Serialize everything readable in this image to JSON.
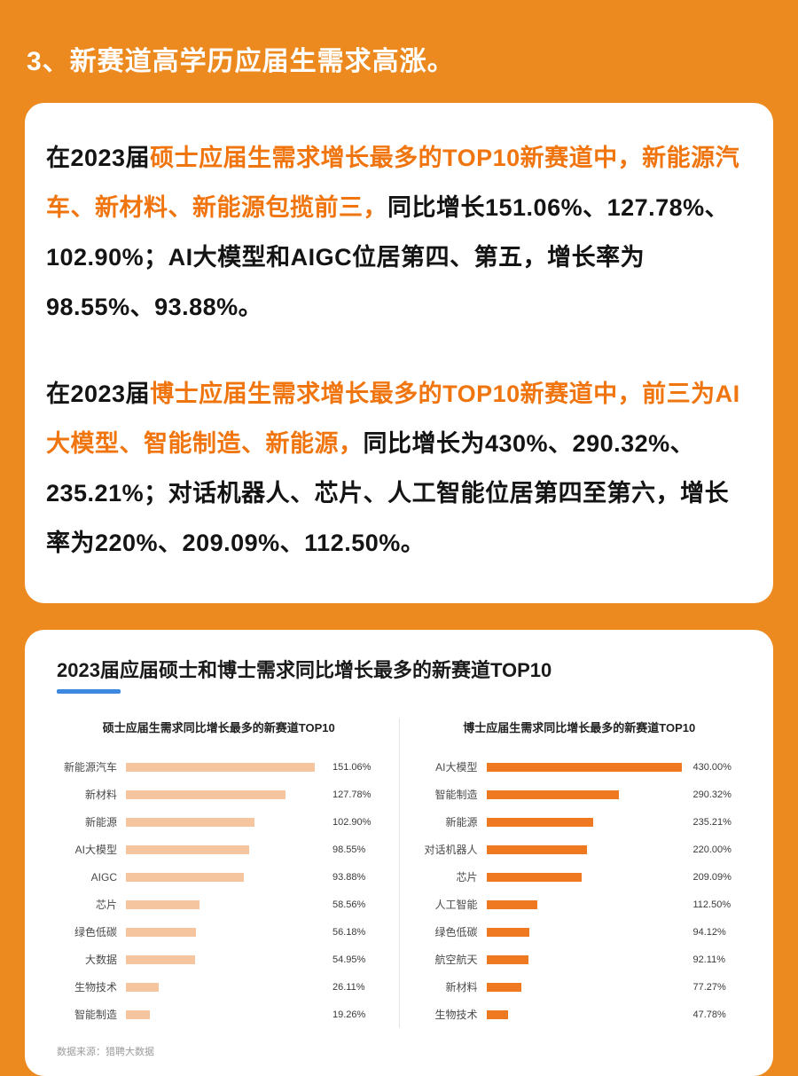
{
  "page": {
    "bg_color": "#ED8A1F",
    "heading": "3、新赛道高学历应届生需求高涨。",
    "highlight_color": "#F0750F",
    "accent_color": "#3E87DE"
  },
  "paragraphs": [
    {
      "segments": [
        {
          "text": "在2023届",
          "h": false
        },
        {
          "text": "硕士应届生需求增长最多的TOP10新赛道中，新能源汽车、新材料、新能源包揽前三，",
          "h": true
        },
        {
          "text": "同比增长151.06%、127.78%、102.90%；AI大模型和AIGC位居第四、第五，增长率为98.55%、93.88%。",
          "h": false
        }
      ]
    },
    {
      "segments": [
        {
          "text": "在2023届",
          "h": false
        },
        {
          "text": "博士应届生需求增长最多的TOP10新赛道中，前三为AI大模型、智能制造、新能源，",
          "h": true
        },
        {
          "text": "同比增长为430%、290.32%、235.21%；对话机器人、芯片、人工智能位居第四至第六，增长率为220%、209.09%、112.50%。",
          "h": false
        }
      ]
    }
  ],
  "chart_card": {
    "title": "2023届应届硕士和博士需求同比增长最多的新赛道TOP10",
    "source": "数据来源：猎聘大数据"
  },
  "chart_data": [
    {
      "type": "bar",
      "orientation": "horizontal",
      "title": "硕士应届生需求同比增长最多的新赛道TOP10",
      "categories": [
        "新能源汽车",
        "新材料",
        "新能源",
        "AI大模型",
        "AIGC",
        "芯片",
        "绿色低碳",
        "大数据",
        "生物技术",
        "智能制造"
      ],
      "values": [
        151.06,
        127.78,
        102.9,
        98.55,
        93.88,
        58.56,
        56.18,
        54.95,
        26.11,
        19.26
      ],
      "value_labels": [
        "151.06%",
        "127.78%",
        "102.90%",
        "98.55%",
        "93.88%",
        "58.56%",
        "56.18%",
        "54.95%",
        "26.11%",
        "19.26%"
      ],
      "bar_color": "#F5C5A0",
      "xlim": [
        0,
        160
      ],
      "grid": false,
      "legend": false
    },
    {
      "type": "bar",
      "orientation": "horizontal",
      "title": "博士应届生需求同比增长最多的新赛道TOP10",
      "categories": [
        "AI大模型",
        "智能制造",
        "新能源",
        "对话机器人",
        "芯片",
        "人工智能",
        "绿色低碳",
        "航空航天",
        "新材料",
        "生物技术"
      ],
      "values": [
        430.0,
        290.32,
        235.21,
        220.0,
        209.09,
        112.5,
        94.12,
        92.11,
        77.27,
        47.78
      ],
      "value_labels": [
        "430.00%",
        "290.32%",
        "235.21%",
        "220.00%",
        "209.09%",
        "112.50%",
        "94.12%",
        "92.11%",
        "77.27%",
        "47.78%"
      ],
      "bar_color": "#EF7920",
      "xlim": [
        0,
        440
      ],
      "grid": false,
      "legend": false
    }
  ]
}
